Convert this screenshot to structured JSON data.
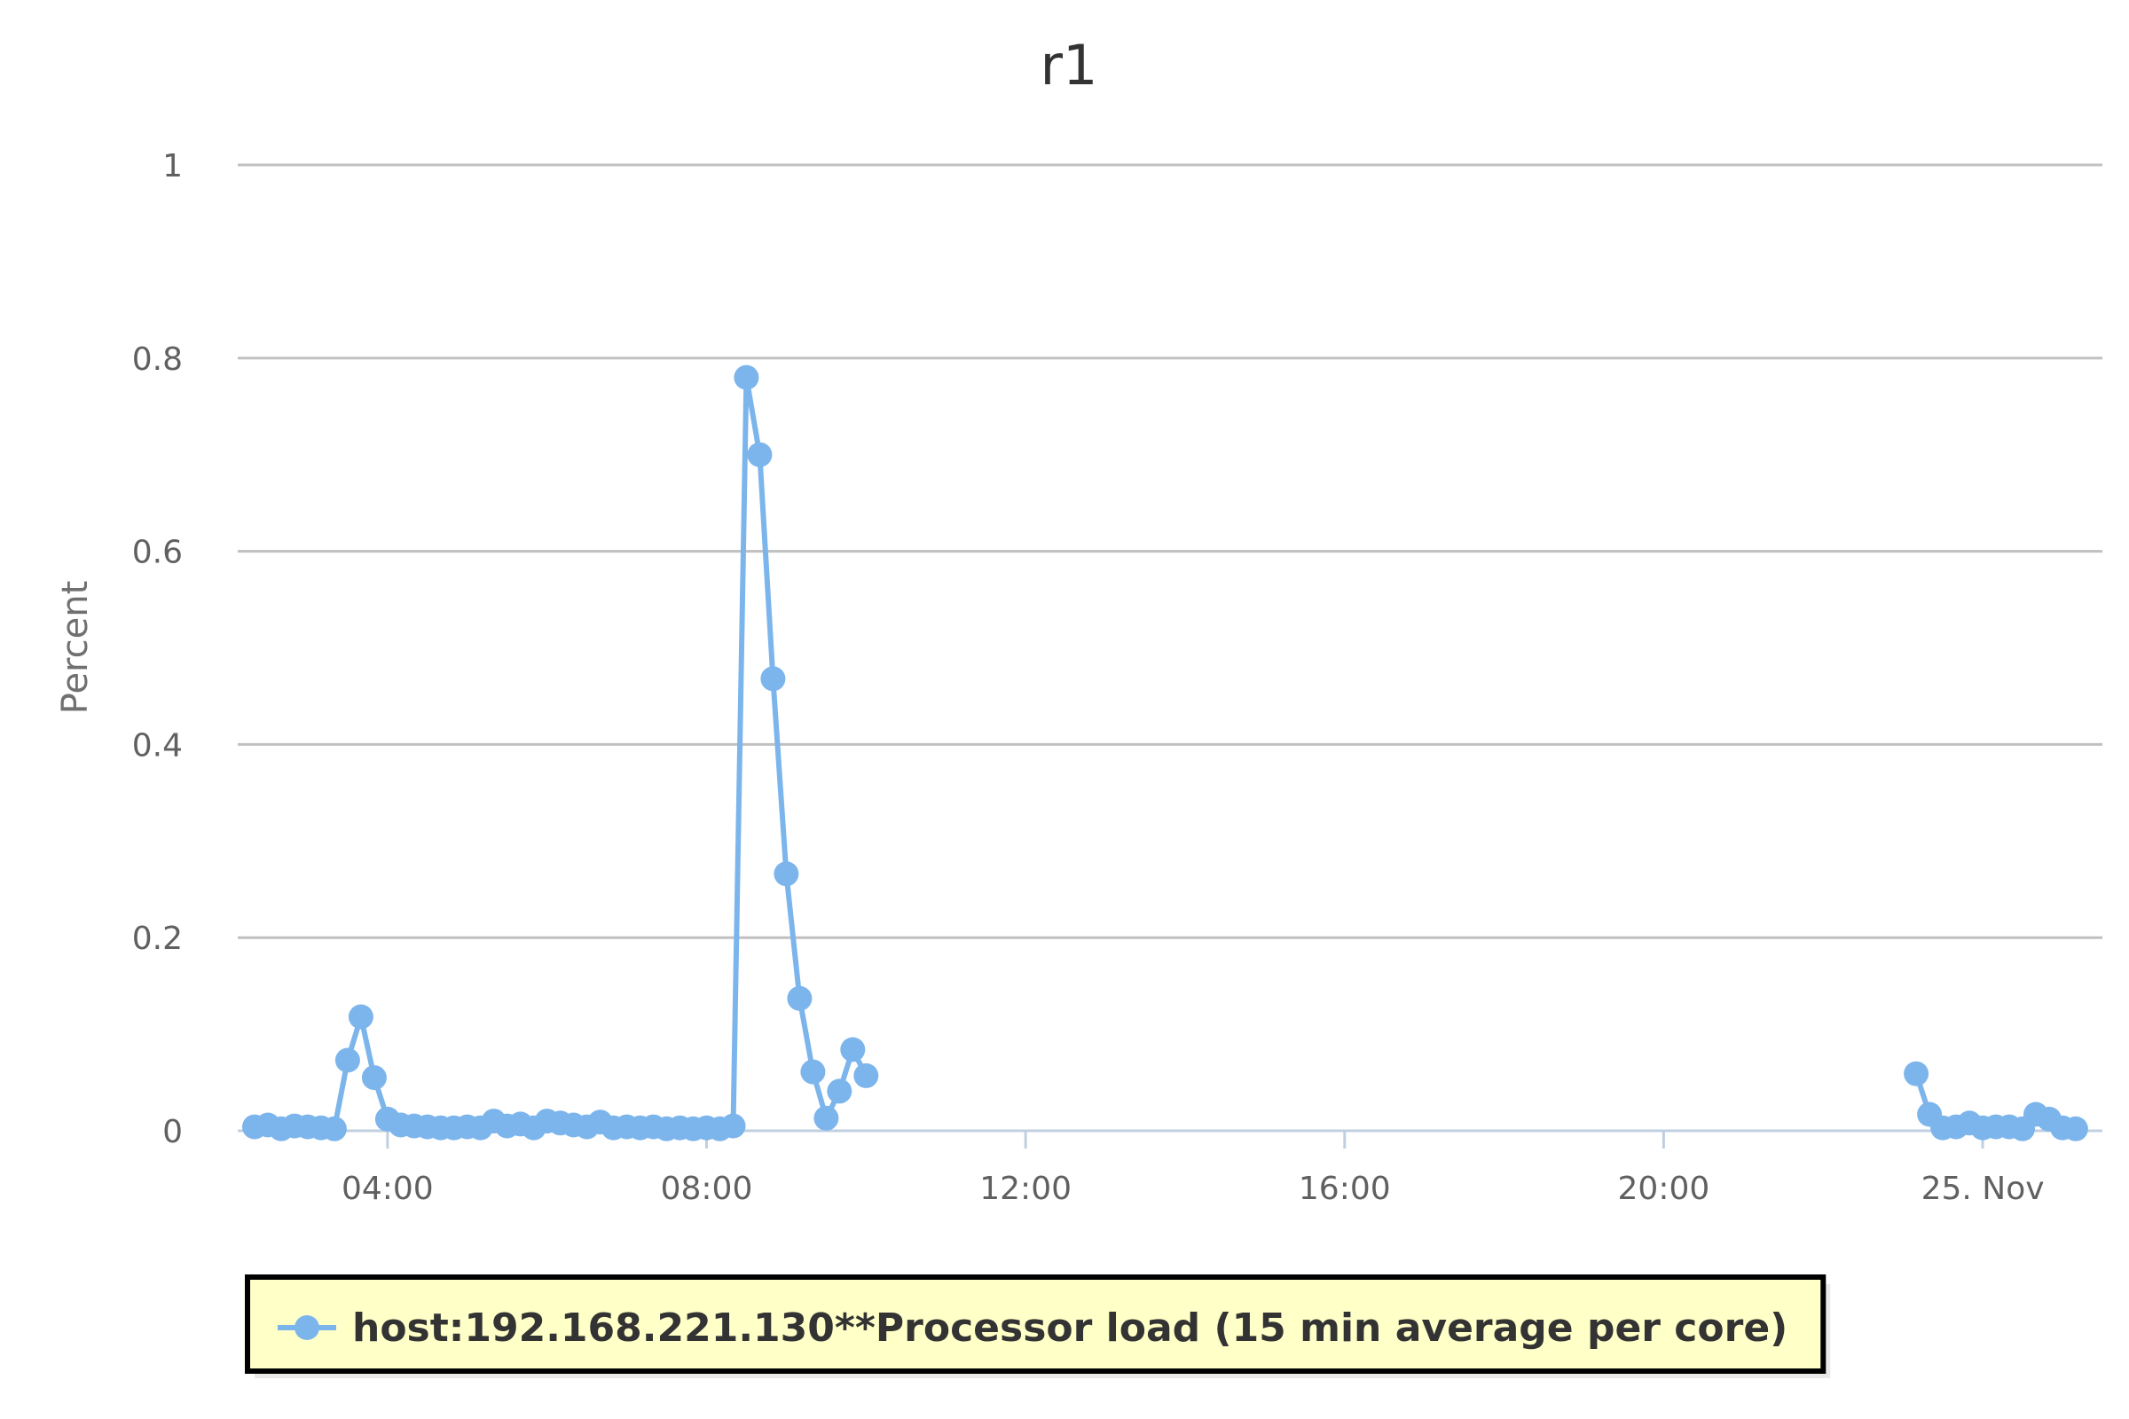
{
  "chart_data": {
    "type": "line",
    "title": "r1",
    "xlabel": "",
    "ylabel": "Percent",
    "ylim": [
      0,
      1
    ],
    "y_ticks": [
      "0",
      "0.2",
      "0.4",
      "0.6",
      "0.8",
      "1"
    ],
    "x_ticks": [
      "04:00",
      "08:00",
      "12:00",
      "16:00",
      "20:00",
      "25. Nov"
    ],
    "x_range": [
      "2:20",
      "24:34"
    ],
    "grid": true,
    "legend_position": "bottom",
    "colors": {
      "series": "#7cb5ec",
      "legend_bg": "#ffffc8",
      "legend_border": "#000000"
    },
    "series": [
      {
        "name": "host:192.168.221.130**Processor load (15 min average per core)",
        "segments": [
          {
            "x": [
              "2:20",
              "2:30",
              "2:40",
              "2:50",
              "3:00",
              "3:10",
              "3:20",
              "3:30",
              "3:40",
              "3:50",
              "4:00",
              "4:10",
              "4:20",
              "4:30",
              "4:40",
              "4:50",
              "5:00",
              "5:10",
              "5:20",
              "5:30",
              "5:40",
              "5:50",
              "6:00",
              "6:10",
              "6:20",
              "6:30",
              "6:40",
              "6:50",
              "7:00",
              "7:10",
              "7:20",
              "7:30",
              "7:40",
              "7:50",
              "8:00",
              "8:10",
              "8:20",
              "8:30",
              "8:40",
              "8:50",
              "9:00",
              "9:10",
              "9:20",
              "9:30",
              "9:40",
              "9:50",
              "10:00"
            ],
            "y": [
              0.004,
              0.006,
              0.002,
              0.005,
              0.004,
              0.003,
              0.002,
              0.073,
              0.118,
              0.055,
              0.012,
              0.006,
              0.005,
              0.004,
              0.003,
              0.003,
              0.004,
              0.003,
              0.01,
              0.005,
              0.007,
              0.003,
              0.01,
              0.008,
              0.006,
              0.004,
              0.009,
              0.003,
              0.004,
              0.003,
              0.004,
              0.002,
              0.003,
              0.002,
              0.003,
              0.002,
              0.005,
              0.78,
              0.7,
              0.468,
              0.266,
              0.137,
              0.061,
              0.013,
              0.041,
              0.084,
              0.057
            ]
          },
          {
            "x": [
              "23:10",
              "23:20",
              "23:30",
              "23:40",
              "23:50",
              "24:00",
              "24:10",
              "24:20",
              "24:30",
              "24:40",
              "24:50",
              "25:00",
              "25:10"
            ],
            "y": [
              0.059,
              0.017,
              0.003,
              0.004,
              0.008,
              0.003,
              0.004,
              0.004,
              0.002,
              0.017,
              0.012,
              0.003,
              0.002
            ]
          }
        ]
      }
    ]
  }
}
